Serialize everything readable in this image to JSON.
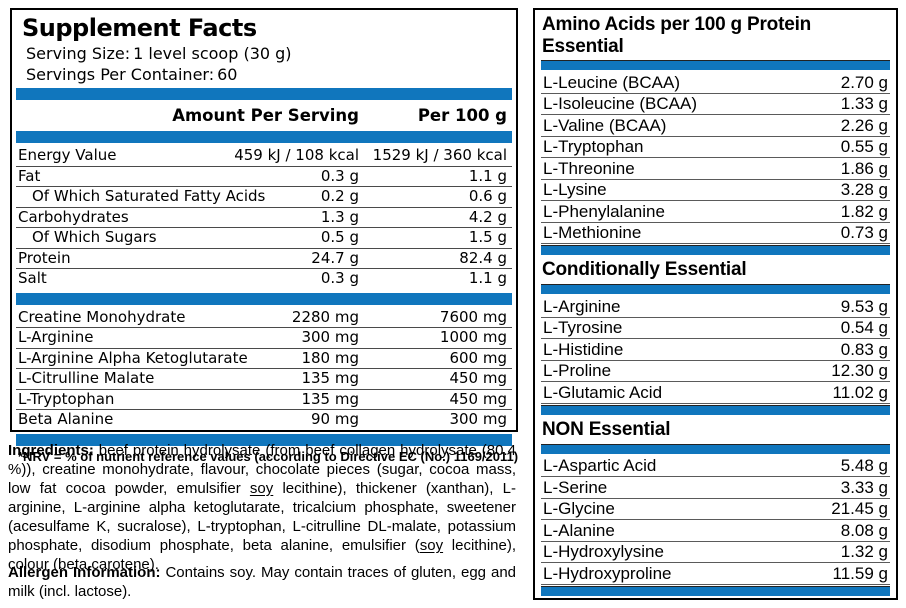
{
  "colors": {
    "accent_blue": "#1076BD",
    "border_black": "#000000"
  },
  "left_panel": {
    "title": "Supplement Facts",
    "serving_size_label": "Serving Size:",
    "serving_size_value": "1 level scoop (30 g)",
    "servings_label": "Servings Per Container:",
    "servings_value": "60",
    "columns": {
      "amount": "Amount Per Serving",
      "per100": "Per 100 g"
    },
    "nutrition_rows": [
      {
        "label": "Energy Value",
        "indent": false,
        "amount": "459 kJ / 108 kcal",
        "per100": "1529 kJ / 360 kcal"
      },
      {
        "label": "Fat",
        "indent": false,
        "amount": "0.3 g",
        "per100": "1.1 g"
      },
      {
        "label": "Of Which Saturated Fatty Acids",
        "indent": true,
        "amount": "0.2 g",
        "per100": "0.6 g"
      },
      {
        "label": "Carbohydrates",
        "indent": false,
        "amount": "1.3 g",
        "per100": "4.2 g"
      },
      {
        "label": "Of Which Sugars",
        "indent": true,
        "amount": "0.5 g",
        "per100": "1.5 g"
      },
      {
        "label": "Protein",
        "indent": false,
        "amount": "24.7 g",
        "per100": "82.4 g"
      },
      {
        "label": "Salt",
        "indent": false,
        "amount": "0.3 g",
        "per100": "1.1 g"
      }
    ],
    "active_ingredient_rows": [
      {
        "label": "Creatine Monohydrate",
        "indent": false,
        "amount": "2280 mg",
        "per100": "7600 mg"
      },
      {
        "label": "L-Arginine",
        "indent": false,
        "amount": "300 mg",
        "per100": "1000 mg"
      },
      {
        "label": "L-Arginine Alpha Ketoglutarate",
        "indent": false,
        "amount": "180 mg",
        "per100": "600 mg"
      },
      {
        "label": "L-Citrulline Malate",
        "indent": false,
        "amount": "135 mg",
        "per100": "450 mg"
      },
      {
        "label": "L-Tryptophan",
        "indent": false,
        "amount": "135 mg",
        "per100": "450 mg"
      },
      {
        "label": "Beta Alanine",
        "indent": false,
        "amount": "90 mg",
        "per100": "300 mg"
      }
    ],
    "footnote": "*NRV = % of nutrient reference values (according to Directive EC (No.) 1169/2011)"
  },
  "ingredients": {
    "heading": "Ingredients:",
    "text_1": " beef protein hydrolysate (from beef collagen hydrolysate (80.4 %)), creatine monohydrate, flavour, chocolate pieces (sugar, cocoa mass, low fat cocoa powder, emulsifier ",
    "soy_1": "soy",
    "text_2": " lecithine), thickener (xanthan), L-arginine, L-arginine alpha ketoglutarate, tricalcium phosphate, sweetener (acesulfame K, sucralose), L-tryptophan, L-citrulline DL-malate, potassium phosphate, disodium phosphate, beta alanine, emulsifier (",
    "soy_2": "soy",
    "text_3": " lecithine), colour (beta carotene)."
  },
  "allergen": {
    "heading": "Allergen Information:",
    "text": " Contains soy. May contain traces of gluten, egg and milk (incl. lactose)."
  },
  "right_panel": {
    "title_line1": "Amino Acids per 100 g Protein",
    "sections": [
      {
        "heading": "Essential",
        "rows": [
          {
            "label": "L-Leucine (BCAA)",
            "value": "2.70 g"
          },
          {
            "label": "L-Isoleucine (BCAA)",
            "value": "1.33 g"
          },
          {
            "label": "L-Valine (BCAA)",
            "value": "2.26 g"
          },
          {
            "label": "L-Tryptophan",
            "value": "0.55 g"
          },
          {
            "label": "L-Threonine",
            "value": "1.86 g"
          },
          {
            "label": "L-Lysine",
            "value": "3.28 g"
          },
          {
            "label": "L-Phenylalanine",
            "value": "1.82 g"
          },
          {
            "label": "L-Methionine",
            "value": "0.73 g"
          }
        ]
      },
      {
        "heading": "Conditionally Essential",
        "rows": [
          {
            "label": "L-Arginine",
            "value": "9.53 g"
          },
          {
            "label": "L-Tyrosine",
            "value": "0.54 g"
          },
          {
            "label": "L-Histidine",
            "value": "0.83 g"
          },
          {
            "label": "L-Proline",
            "value": "12.30 g"
          },
          {
            "label": "L-Glutamic Acid",
            "value": "11.02 g"
          }
        ]
      },
      {
        "heading": "NON Essential",
        "rows": [
          {
            "label": "L-Aspartic Acid",
            "value": "5.48 g"
          },
          {
            "label": "L-Serine",
            "value": "3.33 g"
          },
          {
            "label": "L-Glycine",
            "value": "21.45 g"
          },
          {
            "label": "L-Alanine",
            "value": "8.08 g"
          },
          {
            "label": "L-Hydroxylysine",
            "value": "1.32 g"
          },
          {
            "label": "L-Hydroxyproline",
            "value": "11.59 g"
          }
        ]
      }
    ]
  }
}
